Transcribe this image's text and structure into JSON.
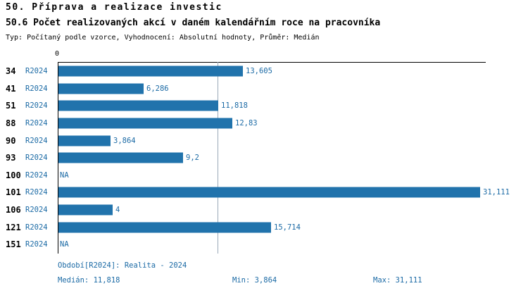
{
  "header": {
    "title1": "50. Příprava a realizace investic",
    "title2": "50.6 Počet realizovaných akcí v daném kalendářním roce na pracovníka",
    "subtitle": "Typ: Počítaný podle vzorce, Vyhodnocení: Absolutní hodnoty, Průměr: Medián"
  },
  "chart_data": {
    "type": "bar",
    "orientation": "horizontal",
    "title": "50.6 Počet realizovaných akcí v daném kalendářním roce na pracovníka",
    "x_axis": {
      "zero_label": "0",
      "max": 31.6
    },
    "median_value": 11.818,
    "categories": [
      "34",
      "41",
      "51",
      "88",
      "90",
      "93",
      "100",
      "101",
      "106",
      "121",
      "151"
    ],
    "rows": [
      {
        "category": "34",
        "period": "R2024",
        "value": 13.605,
        "label": "13,605"
      },
      {
        "category": "41",
        "period": "R2024",
        "value": 6.286,
        "label": "6,286"
      },
      {
        "category": "51",
        "period": "R2024",
        "value": 11.818,
        "label": "11,818"
      },
      {
        "category": "88",
        "period": "R2024",
        "value": 12.83,
        "label": "12,83"
      },
      {
        "category": "90",
        "period": "R2024",
        "value": 3.864,
        "label": "3,864"
      },
      {
        "category": "93",
        "period": "R2024",
        "value": 9.2,
        "label": "9,2"
      },
      {
        "category": "100",
        "period": "R2024",
        "value": null,
        "label": "NA"
      },
      {
        "category": "101",
        "period": "R2024",
        "value": 31.111,
        "label": "31,111"
      },
      {
        "category": "106",
        "period": "R2024",
        "value": 4,
        "label": "4"
      },
      {
        "category": "121",
        "period": "R2024",
        "value": 15.714,
        "label": "15,714"
      },
      {
        "category": "151",
        "period": "R2024",
        "value": null,
        "label": "NA"
      }
    ],
    "colors": {
      "bar": "#2173ac",
      "label_text": "#1b6aa5",
      "median_line": "#9aa9b8"
    }
  },
  "footer": {
    "period_text": "Období[R2024]: Realita - 2024",
    "median_text": "Medián: 11,818",
    "min_text": "Min: 3,864",
    "max_text": "Max: 31,111"
  }
}
